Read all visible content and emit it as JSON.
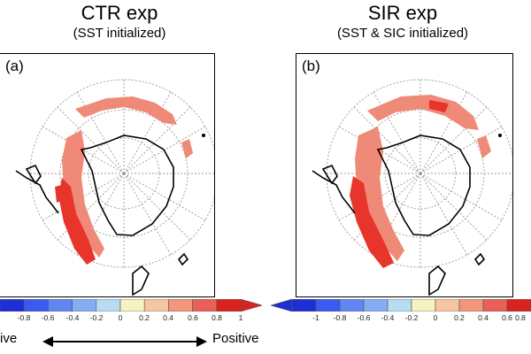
{
  "panels": [
    {
      "id": "a",
      "title": "CTR exp",
      "subtitle": "(SST initialized)",
      "label": "(a)"
    },
    {
      "id": "b",
      "title": "SIR exp",
      "subtitle": "(SST & SIC initialized)",
      "label": "(b)"
    }
  ],
  "colorbar": {
    "left_ticks": [
      "-0.8",
      "-0.6",
      "-0.4",
      "-0.2",
      "0",
      "0.2",
      "0.4",
      "0.6",
      "0.8",
      "1"
    ],
    "right_ticks": [
      "-1",
      "-0.8",
      "-0.6",
      "-0.4",
      "-0.2",
      "0",
      "0.2",
      "0.4",
      "0.6",
      "0.8"
    ],
    "colors": [
      "#1f2fd6",
      "#3a5af0",
      "#5f86f2",
      "#86acf4",
      "#b8dcf2",
      "#f6f2c2",
      "#f6c6a2",
      "#f2967c",
      "#e86058",
      "#d8241f"
    ]
  },
  "annotation": {
    "left_text": "ive",
    "right_text": "Positive"
  },
  "colors": {
    "land_outline": "#000000",
    "grid": "#9a9a9a",
    "shading_light": "#f08a78",
    "shading_dark": "#e8352c"
  }
}
